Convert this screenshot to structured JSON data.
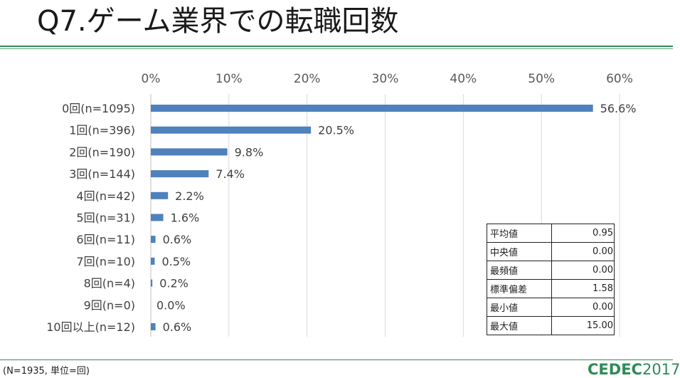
{
  "header": {
    "title": "Q7.ゲーム業界での転職回数"
  },
  "footer": {
    "note": "(N=1935, 単位=回)",
    "logo_bold": "CEDEC",
    "logo_year": "2017"
  },
  "colors": {
    "bar": "#4f81bd",
    "accent": "#2e8b57",
    "grid": "#d9d9d9"
  },
  "chart_data": {
    "type": "bar",
    "orientation": "horizontal",
    "title": "Q7.ゲーム業界での転職回数",
    "xlim": [
      0,
      60
    ],
    "xticks": [
      "0%",
      "10%",
      "20%",
      "30%",
      "40%",
      "50%",
      "60%"
    ],
    "tick_values": [
      0,
      10,
      20,
      30,
      40,
      50,
      60
    ],
    "categories": [
      "0回(n=1095)",
      "1回(n=396)",
      "2回(n=190)",
      "3回(n=144)",
      "4回(n=42)",
      "5回(n=31)",
      "6回(n=11)",
      "7回(n=10)",
      "8回(n=4)",
      "9回(n=0)",
      "10回以上(n=12)"
    ],
    "values": [
      56.6,
      20.5,
      9.8,
      7.4,
      2.2,
      1.6,
      0.6,
      0.5,
      0.2,
      0.0,
      0.6
    ],
    "value_labels": [
      "56.6%",
      "20.5%",
      "9.8%",
      "7.4%",
      "2.2%",
      "1.6%",
      "0.6%",
      "0.5%",
      "0.2%",
      "0.0%",
      "0.6%"
    ],
    "grid": true,
    "legend": "none"
  },
  "stats_table": [
    {
      "label": "平均値",
      "value": "0.95"
    },
    {
      "label": "中央値",
      "value": "0.00"
    },
    {
      "label": "最頻値",
      "value": "0.00"
    },
    {
      "label": "標準偏差",
      "value": "1.58"
    },
    {
      "label": "最小値",
      "value": "0.00"
    },
    {
      "label": "最大値",
      "value": "15.00"
    }
  ]
}
